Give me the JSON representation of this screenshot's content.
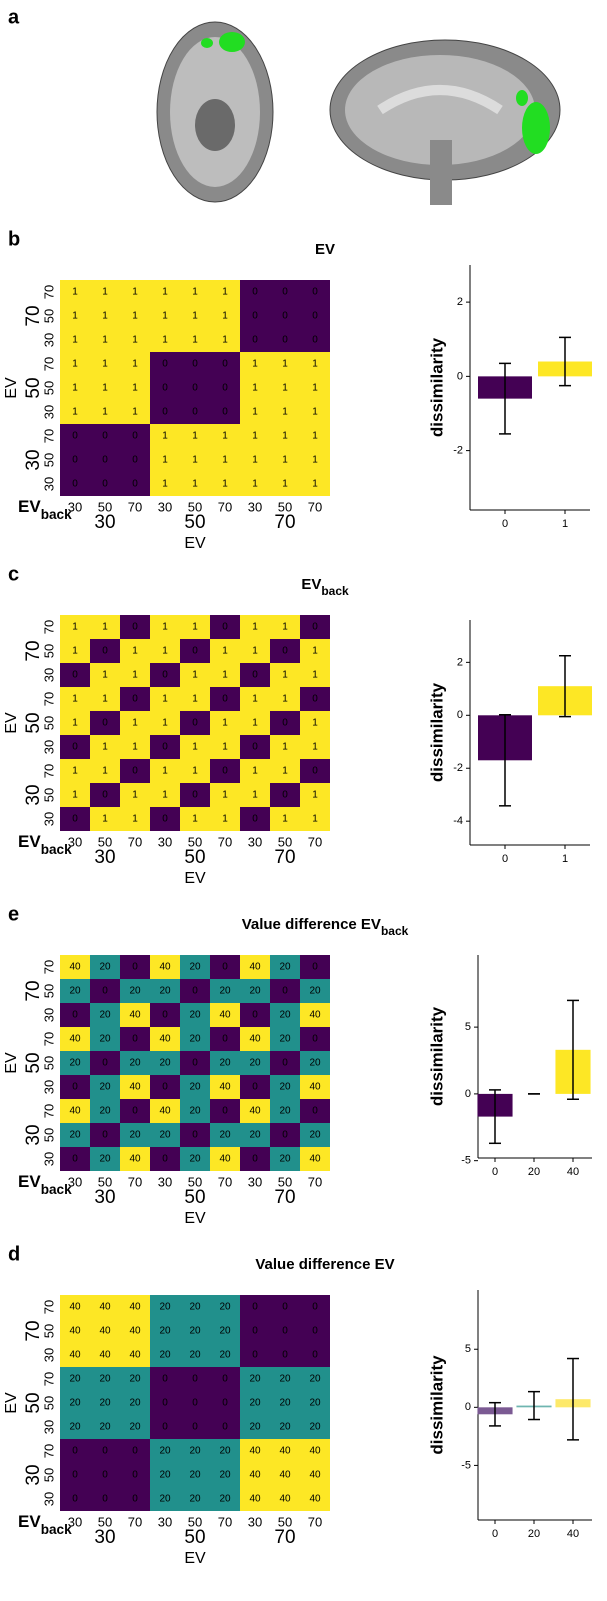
{
  "chart_data": [
    {
      "type": "heatmap",
      "panel_label": "b",
      "title": "EV",
      "y_label": "EV",
      "corner_label": "EV",
      "corner_sub": "back",
      "x_label": "EV",
      "x_inner": [
        "30",
        "50",
        "70",
        "30",
        "50",
        "70",
        "30",
        "50",
        "70"
      ],
      "x_outer": [
        "30",
        "50",
        "70"
      ],
      "y_inner": [
        "70",
        "50",
        "30",
        "70",
        "50",
        "30",
        "70",
        "50",
        "30"
      ],
      "y_outer": [
        "70",
        "50",
        "30"
      ],
      "colorscale": [
        {
          "value": 0,
          "color": "#440154"
        },
        {
          "value": 1,
          "color": "#fde725"
        }
      ],
      "values": [
        [
          1,
          1,
          1,
          1,
          1,
          1,
          0,
          0,
          0
        ],
        [
          1,
          1,
          1,
          1,
          1,
          1,
          0,
          0,
          0
        ],
        [
          1,
          1,
          1,
          1,
          1,
          1,
          0,
          0,
          0
        ],
        [
          1,
          1,
          1,
          0,
          0,
          0,
          1,
          1,
          1
        ],
        [
          1,
          1,
          1,
          0,
          0,
          0,
          1,
          1,
          1
        ],
        [
          1,
          1,
          1,
          0,
          0,
          0,
          1,
          1,
          1
        ],
        [
          0,
          0,
          0,
          1,
          1,
          1,
          1,
          1,
          1
        ],
        [
          0,
          0,
          0,
          1,
          1,
          1,
          1,
          1,
          1
        ],
        [
          0,
          0,
          0,
          1,
          1,
          1,
          1,
          1,
          1
        ]
      ]
    },
    {
      "type": "bar",
      "y_label": "dissimilarity",
      "categories": [
        "0",
        "1"
      ],
      "values": [
        -0.6,
        0.4
      ],
      "errors": [
        0.95,
        0.65
      ],
      "colors": [
        "#440154",
        "#fde725"
      ],
      "ylim": [
        -3.6,
        3.0
      ],
      "yticks": [
        -2,
        0,
        2
      ]
    },
    {
      "type": "heatmap",
      "panel_label": "c",
      "title": "EV",
      "title_sub": "back",
      "y_label": "EV",
      "corner_label": "EV",
      "corner_sub": "back",
      "x_label": "EV",
      "x_inner": [
        "30",
        "50",
        "70",
        "30",
        "50",
        "70",
        "30",
        "50",
        "70"
      ],
      "x_outer": [
        "30",
        "50",
        "70"
      ],
      "y_inner": [
        "70",
        "50",
        "30",
        "70",
        "50",
        "30",
        "70",
        "50",
        "30"
      ],
      "y_outer": [
        "70",
        "50",
        "30"
      ],
      "colorscale": [
        {
          "value": 0,
          "color": "#440154"
        },
        {
          "value": 1,
          "color": "#fde725"
        }
      ],
      "values": [
        [
          1,
          1,
          0,
          1,
          1,
          0,
          1,
          1,
          0
        ],
        [
          1,
          0,
          1,
          1,
          0,
          1,
          1,
          0,
          1
        ],
        [
          0,
          1,
          1,
          0,
          1,
          1,
          0,
          1,
          1
        ],
        [
          1,
          1,
          0,
          1,
          1,
          0,
          1,
          1,
          0
        ],
        [
          1,
          0,
          1,
          1,
          0,
          1,
          1,
          0,
          1
        ],
        [
          0,
          1,
          1,
          0,
          1,
          1,
          0,
          1,
          1
        ],
        [
          1,
          1,
          0,
          1,
          1,
          0,
          1,
          1,
          0
        ],
        [
          1,
          0,
          1,
          1,
          0,
          1,
          1,
          0,
          1
        ],
        [
          0,
          1,
          1,
          0,
          1,
          1,
          0,
          1,
          1
        ]
      ]
    },
    {
      "type": "bar",
      "y_label": "dissimilarity",
      "categories": [
        "0",
        "1"
      ],
      "values": [
        -1.7,
        1.1
      ],
      "errors": [
        1.72,
        1.15
      ],
      "colors": [
        "#440154",
        "#fde725"
      ],
      "ylim": [
        -4.9,
        3.6
      ],
      "yticks": [
        -4,
        -2,
        0,
        2
      ]
    },
    {
      "type": "heatmap",
      "panel_label": "e",
      "title": "Value difference EV",
      "title_sub": "back",
      "y_label": "EV",
      "corner_label": "EV",
      "corner_sub": "back",
      "x_label": "EV",
      "x_inner": [
        "30",
        "50",
        "70",
        "30",
        "50",
        "70",
        "30",
        "50",
        "70"
      ],
      "x_outer": [
        "30",
        "50",
        "70"
      ],
      "y_inner": [
        "70",
        "50",
        "30",
        "70",
        "50",
        "30",
        "70",
        "50",
        "30"
      ],
      "y_outer": [
        "70",
        "50",
        "30"
      ],
      "colorscale": [
        {
          "value": 0,
          "color": "#440154"
        },
        {
          "value": 20,
          "color": "#21908c"
        },
        {
          "value": 40,
          "color": "#fde725"
        }
      ],
      "values": [
        [
          40,
          20,
          0,
          40,
          20,
          0,
          40,
          20,
          0
        ],
        [
          20,
          0,
          20,
          20,
          0,
          20,
          20,
          0,
          20
        ],
        [
          0,
          20,
          40,
          0,
          20,
          40,
          0,
          20,
          40
        ],
        [
          40,
          20,
          0,
          40,
          20,
          0,
          40,
          20,
          0
        ],
        [
          20,
          0,
          20,
          20,
          0,
          20,
          20,
          0,
          20
        ],
        [
          0,
          20,
          40,
          0,
          20,
          40,
          0,
          20,
          40
        ],
        [
          40,
          20,
          0,
          40,
          20,
          0,
          40,
          20,
          0
        ],
        [
          20,
          0,
          20,
          20,
          0,
          20,
          20,
          0,
          20
        ],
        [
          0,
          20,
          40,
          0,
          20,
          40,
          0,
          20,
          40
        ]
      ]
    },
    {
      "type": "bar",
      "y_label": "dissimilarity",
      "categories": [
        "0",
        "20",
        "40"
      ],
      "values": [
        -1.7,
        0,
        3.3
      ],
      "errors": [
        2.0,
        0,
        3.7
      ],
      "colors": [
        "#440154",
        "#21908c",
        "#fde725"
      ],
      "ylim": [
        -4.8,
        10.4
      ],
      "yticks": [
        -5,
        0,
        5
      ]
    },
    {
      "type": "heatmap",
      "panel_label": "d",
      "title": "Value difference EV",
      "y_label": "EV",
      "corner_label": "EV",
      "corner_sub": "back",
      "x_label": "EV",
      "x_inner": [
        "30",
        "50",
        "70",
        "30",
        "50",
        "70",
        "30",
        "50",
        "70"
      ],
      "x_outer": [
        "30",
        "50",
        "70"
      ],
      "y_inner": [
        "70",
        "50",
        "30",
        "70",
        "50",
        "30",
        "70",
        "50",
        "30"
      ],
      "y_outer": [
        "70",
        "50",
        "30"
      ],
      "colorscale": [
        {
          "value": 0,
          "color": "#440154"
        },
        {
          "value": 20,
          "color": "#21908c"
        },
        {
          "value": 40,
          "color": "#fde725"
        }
      ],
      "values": [
        [
          40,
          40,
          40,
          20,
          20,
          20,
          0,
          0,
          0
        ],
        [
          40,
          40,
          40,
          20,
          20,
          20,
          0,
          0,
          0
        ],
        [
          40,
          40,
          40,
          20,
          20,
          20,
          0,
          0,
          0
        ],
        [
          20,
          20,
          20,
          0,
          0,
          0,
          20,
          20,
          20
        ],
        [
          20,
          20,
          20,
          0,
          0,
          0,
          20,
          20,
          20
        ],
        [
          20,
          20,
          20,
          0,
          0,
          0,
          20,
          20,
          20
        ],
        [
          0,
          0,
          0,
          20,
          20,
          20,
          40,
          40,
          40
        ],
        [
          0,
          0,
          0,
          20,
          20,
          20,
          40,
          40,
          40
        ],
        [
          0,
          0,
          0,
          20,
          20,
          20,
          40,
          40,
          40
        ]
      ]
    },
    {
      "type": "bar",
      "y_label": "dissimilarity",
      "categories": [
        "0",
        "20",
        "40"
      ],
      "values": [
        -0.6,
        0.15,
        0.7
      ],
      "errors": [
        1.0,
        1.2,
        3.5
      ],
      "colors": [
        "#7b5a93",
        "#6fb5b0",
        "#fde96a"
      ],
      "ylim": [
        -9.7,
        10.1
      ],
      "yticks": [
        -5,
        0,
        5
      ]
    }
  ],
  "figure": {
    "panel_a_label": "a"
  }
}
